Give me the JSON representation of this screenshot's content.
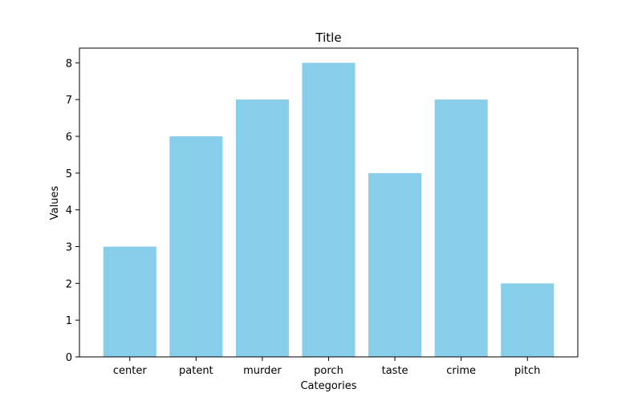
{
  "chart_data": {
    "type": "bar",
    "title": "Title",
    "xlabel": "Categories",
    "ylabel": "Values",
    "categories": [
      "center",
      "patent",
      "murder",
      "porch",
      "taste",
      "crime",
      "pitch"
    ],
    "values": [
      3,
      6,
      7,
      8,
      5,
      7,
      2
    ],
    "ylim": [
      0,
      8.4
    ],
    "yticks": [
      "0",
      "1",
      "2",
      "3",
      "4",
      "5",
      "6",
      "7",
      "8"
    ],
    "grid": false,
    "legend": "none",
    "bar_color": "#87ceeb"
  }
}
